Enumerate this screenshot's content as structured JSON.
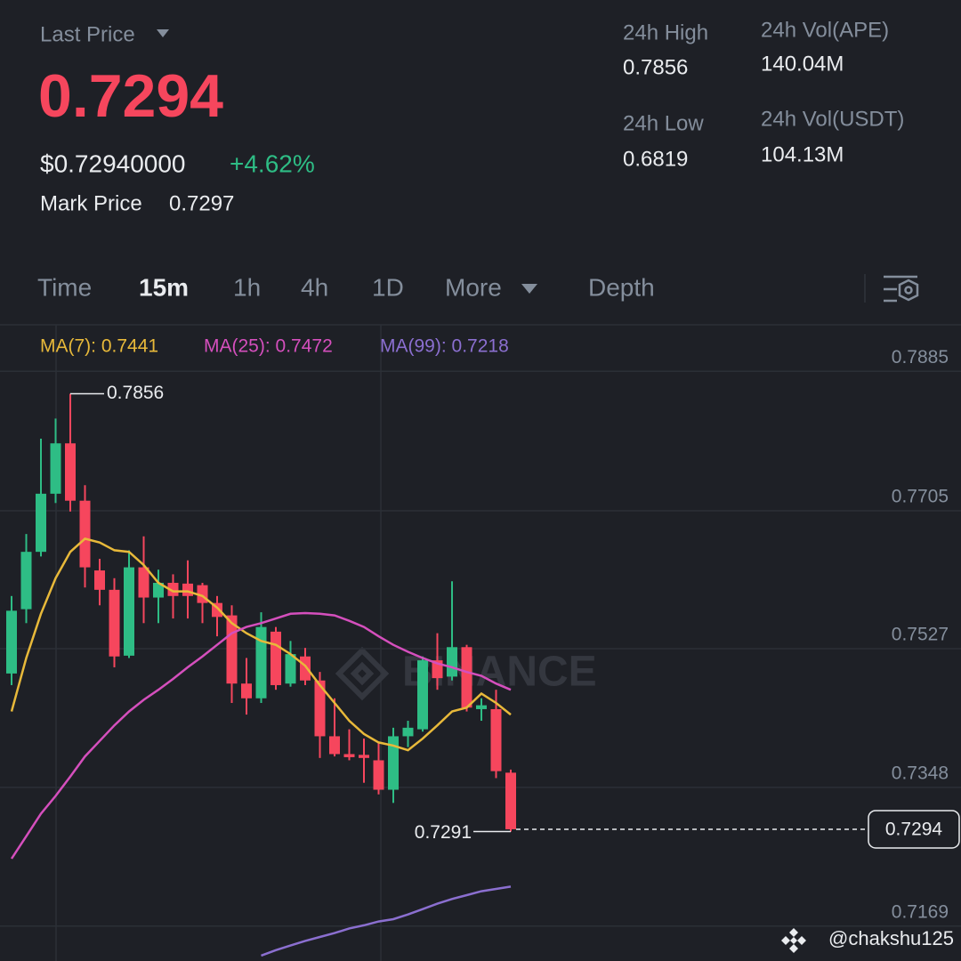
{
  "header": {
    "last_price_label": "Last Price",
    "last_price": "0.7294",
    "usd_price": "$0.72940000",
    "change": "+4.62%",
    "mark_price_label": "Mark Price",
    "mark_price": "0.7297"
  },
  "stats": [
    {
      "label": "24h High",
      "value": "0.7856"
    },
    {
      "label": "24h Low",
      "value": "0.6819"
    },
    {
      "label": "24h Vol(APE)",
      "value": "140.04M"
    },
    {
      "label": "24h Vol(USDT)",
      "value": "104.13M"
    }
  ],
  "tabs": [
    "Time",
    "15m",
    "1h",
    "4h",
    "1D",
    "More",
    "Depth"
  ],
  "active_tab": "15m",
  "credit": "@chakshu125",
  "chart_data": {
    "type": "candlestick",
    "watermark": "BINANCE",
    "up_color": "#2ebd85",
    "down_color": "#f6465d",
    "open": [
      0.7495,
      0.7578,
      0.7652,
      0.7727,
      0.7792,
      0.7718,
      0.7628,
      0.7603,
      0.7518,
      0.7632,
      0.7593,
      0.7612,
      0.7611,
      0.7609,
      0.7586,
      0.757,
      0.7482,
      0.7463,
      0.7549,
      0.7482,
      0.7517,
      0.7486,
      0.7414,
      0.7391,
      0.739,
      0.7383,
      0.7345,
      0.7414,
      0.7423,
      0.7512,
      0.7491,
      0.7529,
      0.7449,
      0.7449,
      0.7367
    ],
    "high": [
      0.7595,
      0.7675,
      0.7798,
      0.7824,
      0.7856,
      0.7738,
      0.7643,
      0.7618,
      0.7654,
      0.7672,
      0.7629,
      0.7623,
      0.7641,
      0.7612,
      0.7595,
      0.7583,
      0.7515,
      0.7574,
      0.7555,
      0.7537,
      0.7528,
      0.7497,
      0.7463,
      0.7423,
      0.7411,
      0.7406,
      0.7425,
      0.7434,
      0.7517,
      0.7547,
      0.7614,
      0.7532,
      0.7463,
      0.7474,
      0.7371
    ],
    "low": [
      0.748,
      0.756,
      0.7646,
      0.7715,
      0.7704,
      0.7606,
      0.7583,
      0.7503,
      0.7515,
      0.756,
      0.756,
      0.7566,
      0.7566,
      0.756,
      0.7543,
      0.7457,
      0.7442,
      0.7457,
      0.7474,
      0.7478,
      0.748,
      0.7386,
      0.7388,
      0.7383,
      0.7354,
      0.7339,
      0.7328,
      0.74,
      0.742,
      0.7474,
      0.7486,
      0.7446,
      0.7434,
      0.736,
      0.7291
    ],
    "close": [
      0.7576,
      0.7652,
      0.7727,
      0.7792,
      0.7718,
      0.7632,
      0.7603,
      0.7517,
      0.7632,
      0.7593,
      0.7612,
      0.7595,
      0.7595,
      0.7586,
      0.7568,
      0.7482,
      0.7463,
      0.7555,
      0.748,
      0.752,
      0.7486,
      0.7414,
      0.7391,
      0.7387,
      0.7386,
      0.7345,
      0.7414,
      0.7425,
      0.7512,
      0.7489,
      0.7529,
      0.7451,
      0.7454,
      0.7369,
      0.7294
    ],
    "series": [
      {
        "name": "MA(7): 0.7441",
        "color": "#e8b93a",
        "values": [
          0.7446,
          0.7515,
          0.7572,
          0.7618,
          0.7652,
          0.7669,
          0.7664,
          0.7654,
          0.7652,
          0.7635,
          0.7612,
          0.7601,
          0.7601,
          0.7595,
          0.758,
          0.756,
          0.7547,
          0.7537,
          0.7532,
          0.752,
          0.7505,
          0.748,
          0.7457,
          0.7434,
          0.7417,
          0.7406,
          0.7402,
          0.7396,
          0.7411,
          0.7428,
          0.7446,
          0.7451,
          0.7469,
          0.7457,
          0.7442
        ]
      },
      {
        "name": "MA(25): 0.7472",
        "color": "#d54fbd",
        "values": [
          0.7256,
          0.7285,
          0.7314,
          0.7337,
          0.7362,
          0.7388,
          0.7408,
          0.7428,
          0.7446,
          0.7461,
          0.7474,
          0.7488,
          0.7503,
          0.7517,
          0.7532,
          0.7547,
          0.7555,
          0.756,
          0.7566,
          0.7572,
          0.7573,
          0.7572,
          0.757,
          0.7563,
          0.7555,
          0.7543,
          0.7532,
          0.7523,
          0.7515,
          0.7508,
          0.7503,
          0.7497,
          0.7492,
          0.7482,
          0.7474
        ]
      },
      {
        "name": "MA(99): 0.7218",
        "color": "#8b6fd0",
        "values": [
          null,
          null,
          null,
          null,
          null,
          null,
          null,
          null,
          null,
          null,
          null,
          null,
          null,
          null,
          null,
          null,
          null,
          0.7131,
          0.7138,
          0.7144,
          0.715,
          0.7155,
          0.716,
          0.7166,
          0.717,
          0.7175,
          0.7178,
          0.7184,
          0.7191,
          0.7198,
          0.7204,
          0.7209,
          0.7214,
          0.7217,
          0.722
        ]
      }
    ],
    "ylim": [
      0.7124,
      0.7945
    ],
    "yticks": [
      0.7885,
      0.7705,
      0.7527,
      0.7348,
      0.7169
    ],
    "grid": true
  }
}
